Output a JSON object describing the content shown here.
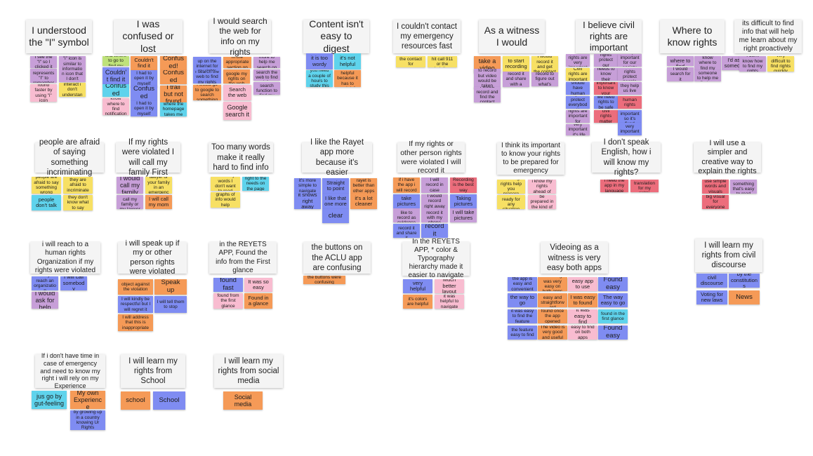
{
  "colors": {
    "yellow": "#f7e064",
    "pink": "#f8bcd0",
    "purple": "#c79fd8",
    "blue": "#7f8cf2",
    "cyan": "#5fd3ec",
    "orange": "#f59a57",
    "green": "#bfe27a",
    "red": "#ec6d7c",
    "header_bg": "#f4f4f4"
  },
  "board": {
    "clusters": [
      {
        "title": "I understood the \"I\" symbol",
        "notes": [
          {
            "text": "I see the \"I\" so I clicked it",
            "color": "purple"
          },
          {
            "text": "I think the \"i\" icon is similar to information icon that I don't know",
            "color": "purple"
          },
          {
            "text": "I think that the icon represents \"I\" to remember the info",
            "color": "purple"
          },
          {
            "text": "Its been able to interact i don't understand the purpose",
            "color": "yellow"
          },
          {
            "text": "found faster by using \"i\" icon",
            "color": "pink"
          }
        ]
      },
      {
        "title": "I was confused or lost",
        "notes": [
          {
            "text": "Couldn't find where to go to find my rights",
            "color": "green"
          },
          {
            "text": "Couldn't find it",
            "color": "orange"
          },
          {
            "text": "Confused!",
            "color": "orange"
          },
          {
            "text": "Couldn't find it",
            "color": "blue"
          },
          {
            "text": "I had to open it by myself",
            "color": "blue"
          },
          {
            "text": "Confused",
            "color": "orange"
          },
          {
            "text": "Confused",
            "color": "cyan"
          },
          {
            "text": "Confused",
            "color": "blue"
          },
          {
            "text": "I trail but not found",
            "color": "orange"
          },
          {
            "text": "Couldn't know where to find notification section",
            "color": "pink"
          },
          {
            "text": "I had to open it by myself",
            "color": "blue"
          },
          {
            "text": "I was lost where the homepage takes me to",
            "color": "cyan"
          }
        ]
      },
      {
        "title": "I would search the web for info on my rights",
        "notes": [
          {
            "text": "I'd look it up on the internet for my rights",
            "color": "blue"
          },
          {
            "text": "I want to be in the appropriate section on the net",
            "color": "orange"
          },
          {
            "text": "Need more to help me search on the web",
            "color": "purple"
          },
          {
            "text": "I search the web to find my rights",
            "color": "blue"
          },
          {
            "text": "I would google my rights on the web",
            "color": "orange"
          },
          {
            "text": "I would search the web to find info",
            "color": "purple"
          },
          {
            "text": "I would go to google to search something",
            "color": "orange"
          },
          {
            "text": "Search the web",
            "color": "pink"
          },
          {
            "text": "I would use the search function to find my rights",
            "color": "purple"
          },
          {
            "text": "Google search it",
            "color": "pink"
          }
        ]
      },
      {
        "title": "Content isn't easy to digest",
        "notes": [
          {
            "text": "it is too wordy",
            "color": "blue"
          },
          {
            "text": "it's not helpful",
            "color": "cyan"
          },
          {
            "text": "you need a couple of hours to study this",
            "color": "cyan"
          },
          {
            "text": "it is not helpful because it has to much info",
            "color": "orange"
          }
        ]
      },
      {
        "title": "I couldn't contact my emergency resources fast",
        "notes": [
          {
            "text": "I can't find the contact for emergency",
            "color": "yellow"
          },
          {
            "text": "I would just hit call 911 or the helpline",
            "color": "yellow"
          }
        ]
      },
      {
        "title": "As a witness I would",
        "notes": [
          {
            "text": "take a video",
            "color": "orange"
          },
          {
            "text": "to start recording",
            "color": "yellow"
          },
          {
            "text": "I would record it and get the contact",
            "color": "yellow"
          },
          {
            "text": "I would try to record but video would be taken down",
            "color": "purple"
          },
          {
            "text": "I would record it and share with a helper",
            "color": "purple"
          },
          {
            "text": "I would record to figure out what's going on",
            "color": "purple"
          },
          {
            "text": "I would record and find the contact",
            "color": "purple"
          }
        ]
      },
      {
        "title": "I believe civil rights are important",
        "notes": [
          {
            "text": "human rights are very important",
            "color": "purple"
          },
          {
            "text": "human rights protect our freedom",
            "color": "purple"
          },
          {
            "text": "very important for our society",
            "color": "purple"
          },
          {
            "text": "Civil rights are important",
            "color": "yellow"
          },
          {
            "text": "everyone needs to know their rights",
            "color": "purple"
          },
          {
            "text": "civil rights protect people",
            "color": "purple"
          },
          {
            "text": "Everyone should have human rights",
            "color": "blue"
          },
          {
            "text": "it's important to know your rights",
            "color": "red"
          },
          {
            "text": "they help us live",
            "color": "purple"
          },
          {
            "text": "rights protect everybody",
            "color": "blue"
          },
          {
            "text": "we need rights to be safe",
            "color": "blue"
          },
          {
            "text": "human rights",
            "color": "red"
          },
          {
            "text": "human rights are important for everyone",
            "color": "purple"
          },
          {
            "text": "civil rights matter",
            "color": "red"
          },
          {
            "text": "so important so it's fixed",
            "color": "blue"
          },
          {
            "text": "very important, it's life",
            "color": "purple"
          },
          {
            "text": "very important",
            "color": "blue"
          }
        ]
      },
      {
        "title": "Where to know rights",
        "notes": [
          {
            "text": "I know where to find",
            "color": "purple"
          },
          {
            "text": "I don't know where to find my rights",
            "color": "purple"
          },
          {
            "text": "I'd ask someone",
            "color": "purple"
          },
          {
            "text": "I would search for it",
            "color": "purple"
          },
          {
            "text": "I would ask someone to help me find my rights",
            "color": "purple"
          }
        ]
      },
      {
        "title": "its difficult to find info that will help me learn about my right proactively",
        "notes": [
          {
            "text": "I don't know how to find my rights",
            "color": "purple"
          },
          {
            "text": "very difficult to find rights quickly",
            "color": "yellow"
          }
        ]
      },
      {
        "title": "people are afraid of saying something incriminating",
        "notes": [
          {
            "text": "people are afraid to say something wrong",
            "color": "yellow"
          },
          {
            "text": "they are afraid to incriminate",
            "color": "yellow"
          },
          {
            "text": "people don't talk",
            "color": "cyan"
          },
          {
            "text": "they don't know what to say",
            "color": "yellow"
          }
        ]
      },
      {
        "title": "If my rights were violated I will call my family First",
        "notes": [
          {
            "text": "I would call my family",
            "color": "purple"
          },
          {
            "text": "Call your lawyer or your family in an emergency",
            "color": "yellow"
          },
          {
            "text": "I would call my family or my lawyer",
            "color": "purple"
          },
          {
            "text": "I will call my mom",
            "color": "orange"
          }
        ]
      },
      {
        "title": "Too many words make it really hard to find info",
        "notes": [
          {
            "text": "too many words I don't want to read",
            "color": "yellow"
          },
          {
            "text": "right to the needs on the page",
            "color": "cyan"
          },
          {
            "text": "graphs of info would help",
            "color": "yellow"
          }
        ]
      },
      {
        "title": "I like the Rayet app more because it's easier",
        "notes": [
          {
            "text": "it's more simple to navigate",
            "color": "blue"
          },
          {
            "text": "Straight to point",
            "color": "blue"
          },
          {
            "text": "rayet is better than other apps",
            "color": "orange"
          },
          {
            "text": "it shows right away",
            "color": "blue"
          },
          {
            "text": "I like that one more",
            "color": "blue"
          },
          {
            "text": "it's a lot cleaner",
            "color": "orange"
          },
          {
            "text": "clear",
            "color": "blue"
          }
        ]
      },
      {
        "title": "If my rights or other person rights were violated I will record it",
        "notes": [
          {
            "text": "if i have the app i will record",
            "color": "orange"
          },
          {
            "text": "I will record in case",
            "color": "purple"
          },
          {
            "text": "Recording is the best way",
            "color": "red"
          },
          {
            "text": "take pictures",
            "color": "blue"
          },
          {
            "text": "I would record right away",
            "color": "purple"
          },
          {
            "text": "Taking pictures",
            "color": "blue"
          },
          {
            "text": "I would like to record as evidence",
            "color": "purple"
          },
          {
            "text": "I would record it with my phone",
            "color": "purple"
          },
          {
            "text": "I will take pictures",
            "color": "purple"
          },
          {
            "text": "I would record it and share it",
            "color": "blue"
          },
          {
            "text": "record it",
            "color": "blue"
          }
        ]
      },
      {
        "title": "I think its important to know your rights to be prepared for emergency",
        "notes": [
          {
            "text": "knowing rights help you prepare",
            "color": "yellow"
          },
          {
            "text": "it's better if i know my rights ahead of time",
            "color": "pink"
          },
          {
            "text": "so i'm ready for any situation",
            "color": "yellow"
          },
          {
            "text": "we have to be prepared in the kind of situation",
            "color": "pink"
          }
        ]
      },
      {
        "title": "I don't speak English, how i will know my rights?",
        "notes": [
          {
            "text": "I need the app in my language",
            "color": "red"
          },
          {
            "text": "need translation for my rights",
            "color": "red"
          }
        ]
      },
      {
        "title": "I will use a simpler and creative way to explain the rights",
        "notes": [
          {
            "text": "use simple words and visuals",
            "color": "red"
          },
          {
            "text": "I want something that's easy to read",
            "color": "purple"
          },
          {
            "text": "big visual for everyone",
            "color": "red"
          }
        ]
      },
      {
        "title": "i will reach to a human rights Organization if my rights were violated",
        "notes": [
          {
            "text": "I will try to reach an organization",
            "color": "blue"
          },
          {
            "text": "I will call somebody",
            "color": "blue"
          },
          {
            "text": "I would ask for help",
            "color": "purple"
          }
        ]
      },
      {
        "title": "i will speak up if my or other person rights were violated",
        "notes": [
          {
            "text": "object against the violation",
            "color": "orange"
          },
          {
            "text": "Speak up",
            "color": "orange"
          },
          {
            "text": "I will kindly be respectful but I will regret it",
            "color": "blue"
          },
          {
            "text": "I will tell them to stop",
            "color": "blue"
          },
          {
            "text": "I will address that this is inappropriate",
            "color": "orange"
          }
        ]
      },
      {
        "title": "in the REYETS APP, Found the info from the First glance",
        "notes": [
          {
            "text": "found fast",
            "color": "blue"
          },
          {
            "text": "It was so easy",
            "color": "pink"
          },
          {
            "text": "found from the first glance",
            "color": "pink"
          },
          {
            "text": "Found in a glance",
            "color": "orange"
          }
        ]
      },
      {
        "title": "the buttons on the ACLU app are confusing",
        "notes": [
          {
            "text": "the buttons were confusing",
            "color": "orange"
          }
        ]
      },
      {
        "title": "In the REYETS APP, * color & Typography hierarchy made it easier to navigate",
        "notes": [
          {
            "text": "very helpful",
            "color": "blue"
          },
          {
            "text": "Much better layout",
            "color": "pink"
          },
          {
            "text": "it's colors are helpful",
            "color": "orange"
          },
          {
            "text": "it was helpful to navigate",
            "color": "pink"
          }
        ]
      },
      {
        "title": "Videoing as a witness is very easy both apps",
        "notes": [
          {
            "text": "the app is easy and convenient",
            "color": "blue"
          },
          {
            "text": "recording was very easy on both apps",
            "color": "orange"
          },
          {
            "text": "easy app to use",
            "color": "pink"
          },
          {
            "text": "Found easy",
            "color": "blue"
          },
          {
            "text": "the way to go",
            "color": "blue"
          },
          {
            "text": "the features easy and straightforward",
            "color": "orange"
          },
          {
            "text": "I was easy to found",
            "color": "orange"
          },
          {
            "text": "The way easy to go",
            "color": "blue"
          },
          {
            "text": "it was easy to find the feature",
            "color": "blue"
          },
          {
            "text": "found once the app opened",
            "color": "orange"
          },
          {
            "text": "It was easy to find",
            "color": "pink"
          },
          {
            "text": "found in the first glance",
            "color": "cyan"
          },
          {
            "text": "the feature easy to find",
            "color": "blue"
          },
          {
            "text": "The video is very good and useful",
            "color": "orange"
          },
          {
            "text": "easy to find on both apps",
            "color": "pink"
          },
          {
            "text": "Found easy",
            "color": "blue"
          }
        ]
      },
      {
        "title": "I will learn my rights from civil discourse",
        "notes": [
          {
            "text": "civil discourse",
            "color": "blue"
          },
          {
            "text": "by the constitutions",
            "color": "blue"
          },
          {
            "text": "Voting for new laws",
            "color": "blue"
          },
          {
            "text": "News",
            "color": "orange"
          }
        ]
      },
      {
        "title": "If i don't have time in case of emergency and need to know my right i will rely on my Experience",
        "notes": [
          {
            "text": "jus go by gut-feeling",
            "color": "cyan"
          },
          {
            "text": "My own Experience",
            "color": "orange"
          },
          {
            "text": "by growing up in a country knowing Ur Rights",
            "color": "blue"
          }
        ]
      },
      {
        "title": "I will learn my rights from School",
        "notes": [
          {
            "text": "school",
            "color": "orange"
          },
          {
            "text": "School",
            "color": "blue"
          }
        ]
      },
      {
        "title": "I will learn my rights from social media",
        "notes": [
          {
            "text": "Social media",
            "color": "orange"
          }
        ]
      }
    ]
  }
}
